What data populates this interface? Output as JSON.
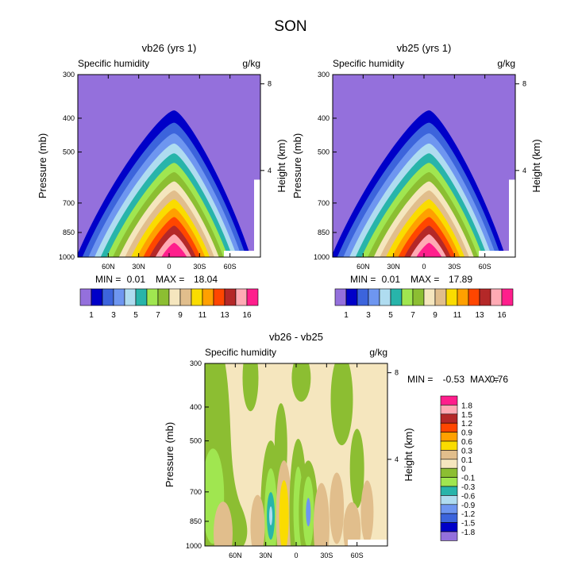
{
  "figure": {
    "title": "SON"
  },
  "colors": {
    "main": [
      "#9470dc",
      "#0000c8",
      "#3c64dc",
      "#6e96f0",
      "#afdcf0",
      "#28b4aa",
      "#a0e650",
      "#8cbe32",
      "#f5e6be",
      "#e1be8c",
      "#fadc00",
      "#ffa000",
      "#ff4600",
      "#b42828",
      "#ffaab4",
      "#ff1e8c"
    ],
    "diff": [
      "#9470dc",
      "#0000c8",
      "#3c64dc",
      "#6e96f0",
      "#afdcf0",
      "#28b4aa",
      "#a0e650",
      "#8cbe32",
      "#f5e6be",
      "#e1be8c",
      "#fadc00",
      "#ffa000",
      "#ff4600",
      "#b42828",
      "#ffaab4",
      "#ff1e8c"
    ]
  },
  "chart_data": [
    {
      "type": "heatmap",
      "title": "vb26 (yrs 1)",
      "left_label": "Specific humidity",
      "right_label": "g/kg",
      "ylabel": "Pressure (mb)",
      "ylabel_right": "Height (km)",
      "x_ticks": [
        "60N",
        "30N",
        "0",
        "30S",
        "60S"
      ],
      "x_tick_values": [
        60,
        30,
        0,
        -30,
        -60
      ],
      "xlim": [
        90,
        -90
      ],
      "y_ticks": [
        "300",
        "400",
        "500",
        "700",
        "850",
        "1000"
      ],
      "y_tick_values": [
        300,
        400,
        500,
        700,
        850,
        1000
      ],
      "ylim": [
        300,
        1000
      ],
      "height_ticks": [
        "8",
        "4"
      ],
      "height_tick_values": [
        8,
        4
      ],
      "stats": {
        "min_label": "MIN =",
        "min": "0.01",
        "max_label": "MAX =",
        "max": "18.04"
      },
      "colorbar_labels": [
        "1",
        "3",
        "5",
        "7",
        "9",
        "11",
        "13",
        "16"
      ],
      "peak_pressure": 380,
      "peak_latitude": -5
    },
    {
      "type": "heatmap",
      "title": "vb25 (yrs 1)",
      "left_label": "Specific humidity",
      "right_label": "g/kg",
      "ylabel": "Pressure (mb)",
      "ylabel_right": "Height (km)",
      "x_ticks": [
        "60N",
        "30N",
        "0",
        "30S",
        "60S"
      ],
      "x_tick_values": [
        60,
        30,
        0,
        -30,
        -60
      ],
      "xlim": [
        90,
        -90
      ],
      "y_ticks": [
        "300",
        "400",
        "500",
        "700",
        "850",
        "1000"
      ],
      "y_tick_values": [
        300,
        400,
        500,
        700,
        850,
        1000
      ],
      "ylim": [
        300,
        1000
      ],
      "height_ticks": [
        "8",
        "4"
      ],
      "height_tick_values": [
        8,
        4
      ],
      "stats": {
        "min_label": "MIN =",
        "min": "0.01",
        "max_label": "MAX =",
        "max": "17.89"
      },
      "colorbar_labels": [
        "1",
        "3",
        "5",
        "7",
        "9",
        "11",
        "13",
        "16"
      ],
      "peak_pressure": 380,
      "peak_latitude": -5
    },
    {
      "type": "heatmap",
      "title": "vb26 - vb25",
      "left_label": "Specific humidity",
      "right_label": "g/kg",
      "ylabel": "Pressure (mb)",
      "ylabel_right": "Height (km)",
      "x_ticks": [
        "60N",
        "30N",
        "0",
        "30S",
        "60S"
      ],
      "x_tick_values": [
        60,
        30,
        0,
        -30,
        -60
      ],
      "xlim": [
        90,
        -90
      ],
      "y_ticks": [
        "300",
        "400",
        "500",
        "700",
        "850",
        "1000"
      ],
      "y_tick_values": [
        300,
        400,
        500,
        700,
        850,
        1000
      ],
      "ylim": [
        300,
        1000
      ],
      "height_ticks": [
        "8",
        "4"
      ],
      "height_tick_values": [
        8,
        4
      ],
      "stats": {
        "min_label": "MIN =",
        "min": "-0.53",
        "max_label": "MAX =",
        "max": "0.76"
      },
      "colorbar_labels": [
        "1.8",
        "1.5",
        "1.2",
        "0.9",
        "0.6",
        "0.3",
        "0.1",
        "0",
        "-0.1",
        "-0.3",
        "-0.6",
        "-0.9",
        "-1.2",
        "-1.5",
        "-1.8"
      ]
    }
  ]
}
